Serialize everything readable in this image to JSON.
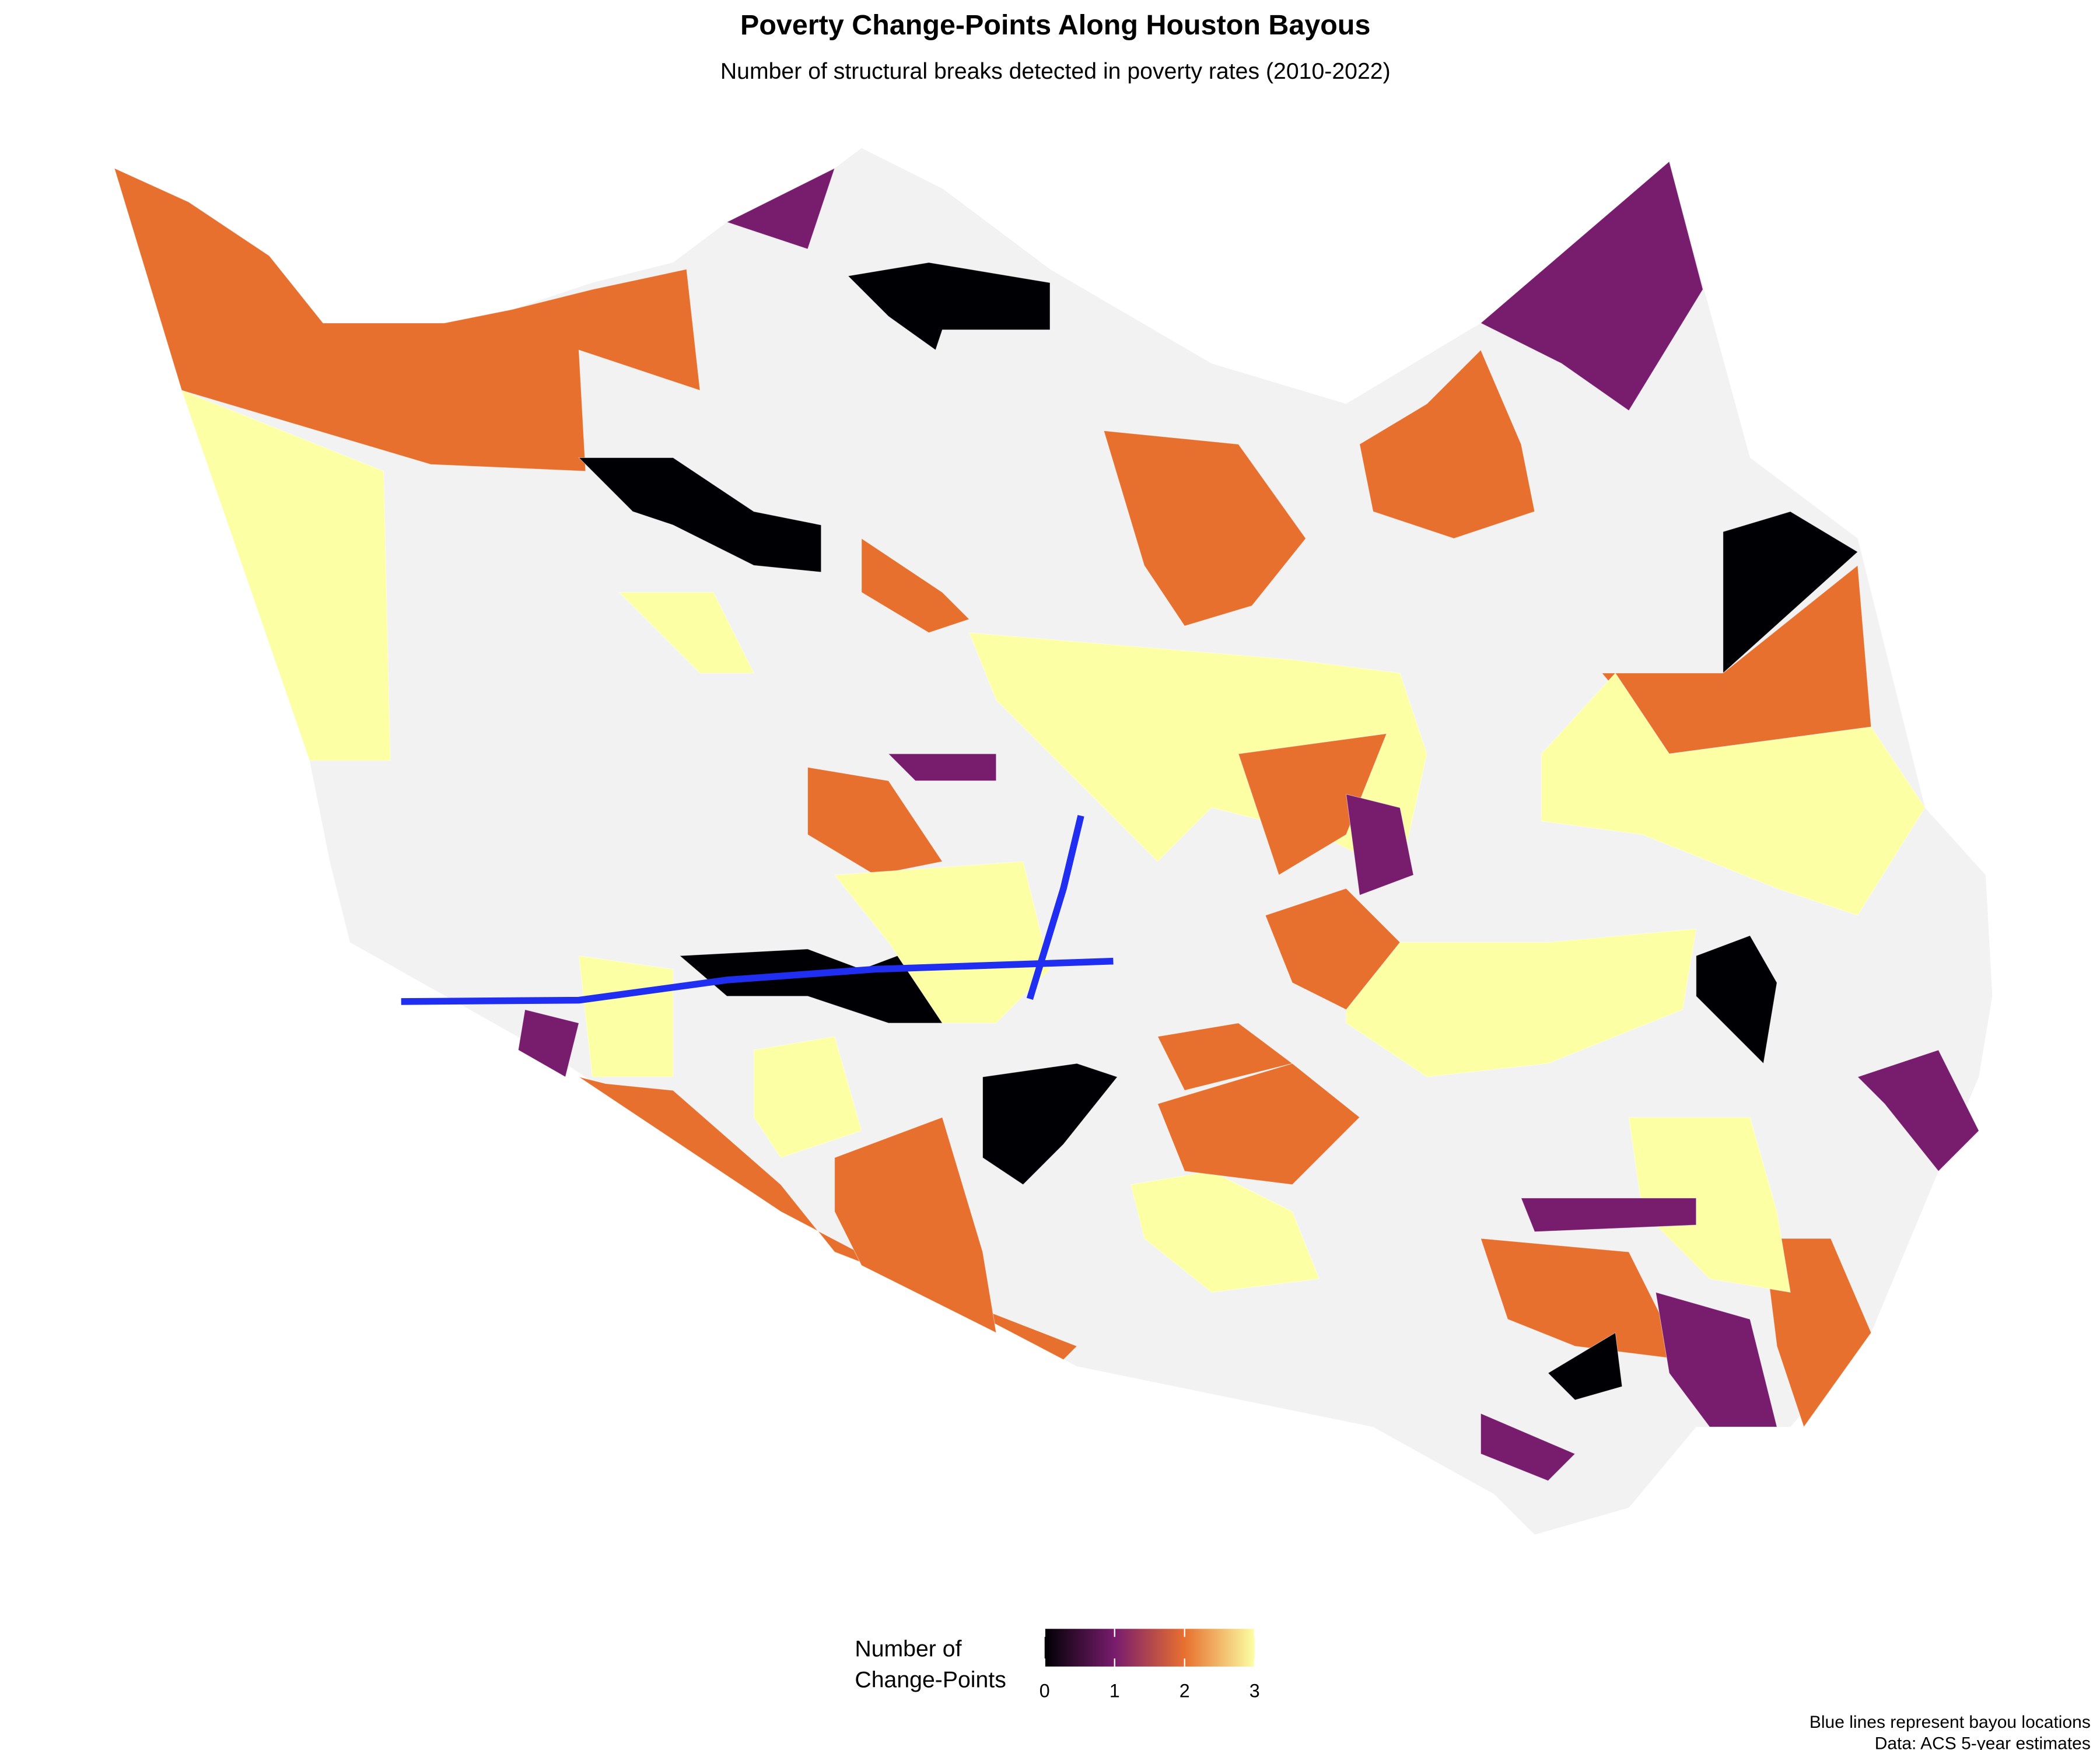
{
  "chart_data": {
    "type": "choropleth",
    "title": "Poverty Change-Points Along Houston Bayous",
    "subtitle": "Number of structural breaks detected in poverty rates (2010-2022)",
    "legend_title": [
      "Number of",
      "Change-Points"
    ],
    "legend_lim": [
      0,
      3
    ],
    "legend_ticks": [
      0,
      1,
      2,
      3
    ],
    "colors": [
      "#000004",
      "#781c6d",
      "#e8702f",
      "#fcffa4"
    ],
    "missing_color": "#f2f2f2",
    "values": [
      2,
      3,
      1,
      2,
      0,
      2,
      3,
      0,
      1,
      2,
      0,
      1,
      3,
      2,
      3,
      2,
      2,
      1,
      2,
      3,
      1,
      0,
      2,
      0,
      0,
      1,
      3,
      2,
      3,
      2,
      3,
      2,
      1,
      0,
      2,
      3,
      1,
      1,
      3,
      2
    ],
    "caption": [
      "Blue lines represent bayou locations",
      "Data: ACS 5-year estimates"
    ]
  }
}
